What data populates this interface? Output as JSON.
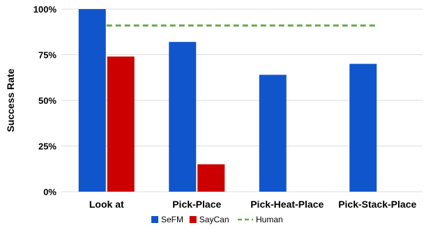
{
  "chart_data": {
    "type": "bar",
    "title": "",
    "xlabel": "",
    "ylabel": "Success Rate",
    "categories": [
      "Look at",
      "Pick-Place",
      "Pick-Heat-Place",
      "Pick-Stack-Place"
    ],
    "series": [
      {
        "name": "SeFM",
        "color": "#1155cc",
        "values": [
          100,
          82,
          64,
          70
        ]
      },
      {
        "name": "SayCan",
        "color": "#cc0000",
        "values": [
          74,
          15,
          0,
          0
        ]
      }
    ],
    "reference_line": {
      "name": "Human",
      "value": 91,
      "color": "#6aa84f",
      "style": "dashed",
      "span": [
        "Look at",
        "Pick-Stack-Place"
      ]
    },
    "ylim": [
      0,
      100
    ],
    "yticks": [
      "0%",
      "25%",
      "50%",
      "75%",
      "100%"
    ],
    "ytick_values": [
      0,
      25,
      50,
      75,
      100
    ],
    "grid": true,
    "legend_position": "bottom-center"
  }
}
